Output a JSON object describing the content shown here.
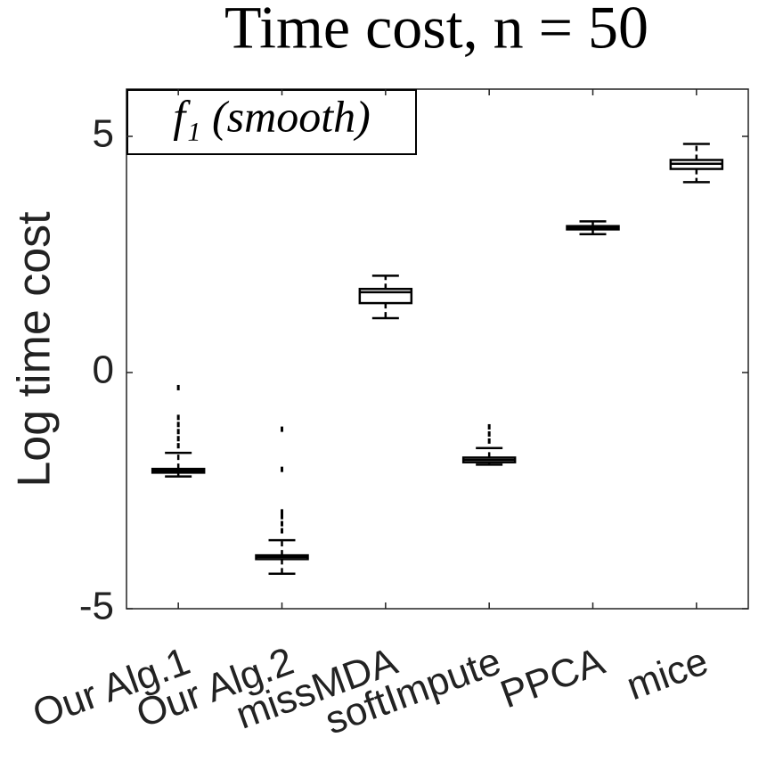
{
  "chart_data": {
    "type": "box",
    "title": "Time cost, n = 50",
    "annotation": "f₁ (smooth)",
    "ylabel": "Log time cost",
    "categories": [
      "Our Alg.1",
      "Our Alg.2",
      "missMDA",
      "softImpute",
      "PPCA",
      "mice"
    ],
    "boxes": [
      {
        "whisker_low": -2.2,
        "q1": -2.12,
        "median": -2.08,
        "q3": -2.04,
        "whisker_high": -1.7,
        "outliers": [
          -0.32,
          -0.95,
          -1.1,
          -1.25,
          -1.4,
          -1.55
        ]
      },
      {
        "whisker_low": -4.26,
        "q1": -3.95,
        "median": -3.9,
        "q3": -3.87,
        "whisker_high": -3.55,
        "outliers": [
          -1.2,
          -2.05,
          -2.95,
          -3.05,
          -3.2,
          -3.35
        ]
      },
      {
        "whisker_low": 1.15,
        "q1": 1.47,
        "median": 1.7,
        "q3": 1.77,
        "whisker_high": 2.05,
        "outliers": []
      },
      {
        "whisker_low": -1.95,
        "q1": -1.9,
        "median": -1.85,
        "q3": -1.8,
        "whisker_high": -1.6,
        "outliers": [
          -1.15,
          -1.3,
          -1.45
        ]
      },
      {
        "whisker_low": 2.93,
        "q1": 3.03,
        "median": 3.07,
        "q3": 3.1,
        "whisker_high": 3.2,
        "outliers": []
      },
      {
        "whisker_low": 4.03,
        "q1": 4.31,
        "median": 4.42,
        "q3": 4.5,
        "whisker_high": 4.84,
        "outliers": []
      }
    ],
    "color": "#000000",
    "ylim": [
      -5,
      6
    ],
    "yticks": [
      -5,
      0,
      5
    ]
  }
}
